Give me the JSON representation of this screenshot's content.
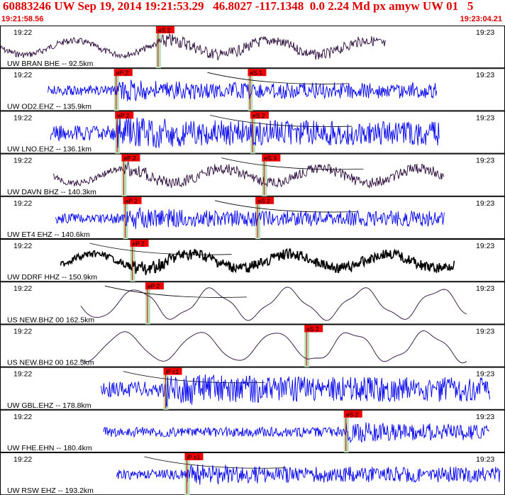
{
  "header": {
    "title": "60883246 UW Sep 19, 2014 19:21:53.29   46.8027 -117.1348  0.0 2.24 Md px amyw UW 01   5",
    "start_time": "19:21:58.56",
    "end_time": "19:23:04.21"
  },
  "colors": {
    "header_text": "#e00000",
    "trace_dark": "#2a0a3a",
    "trace_blue": "#0000ee",
    "trace_black": "#000000",
    "pick_box": "#ee0000",
    "pick_bar": "#b8e0b8",
    "border": "#000000"
  },
  "panels": [
    {
      "label": "UW BRAN BHE -- 92.5km",
      "left_time": "19:22",
      "right_time": "19:23",
      "color": "dark",
      "amp": "mid",
      "picks": [
        {
          "label": "eS 2",
          "t": 0.313
        }
      ],
      "travel": false,
      "data_start": 0.0,
      "data_end": 0.765
    },
    {
      "label": "UW OD2.EHZ -- 135.9km",
      "left_time": "19:22",
      "right_time": "19:23",
      "color": "blue",
      "amp": "mid",
      "picks": [
        {
          "label": "eP 2",
          "t": 0.23
        },
        {
          "label": "eS 1",
          "t": 0.495
        }
      ],
      "travel": true,
      "data_start": 0.095,
      "data_end": 0.865
    },
    {
      "label": "UW LNO.EHZ -- 136.1km",
      "left_time": "19:22",
      "right_time": "19:23",
      "color": "blue",
      "amp": "big",
      "picks": [
        {
          "label": "eP 2",
          "t": 0.232
        },
        {
          "label": "eS 2",
          "t": 0.5
        }
      ],
      "travel": true,
      "data_start": 0.1,
      "data_end": 0.87
    },
    {
      "label": "UW DAVN BHZ -- 140.3km",
      "left_time": "19:22",
      "right_time": "19:23",
      "color": "dark",
      "amp": "mid",
      "picks": [
        {
          "label": "eP 2",
          "t": 0.245
        },
        {
          "label": "eS 3",
          "t": 0.523
        }
      ],
      "travel": true,
      "data_start": 0.105,
      "data_end": 0.88
    },
    {
      "label": "UW ET4 EHZ -- 140.6km",
      "left_time": "19:22",
      "right_time": "19:23",
      "color": "blue",
      "amp": "mid",
      "picks": [
        {
          "label": "eP 2",
          "t": 0.248
        },
        {
          "label": "eS 2",
          "t": 0.51
        }
      ],
      "travel": true,
      "data_start": 0.11,
      "data_end": 0.88
    },
    {
      "label": "UW DDRF HHZ -- 150.9km",
      "left_time": "19:22",
      "right_time": "19:23",
      "color": "black",
      "amp": "mid",
      "picks": [
        {
          "label": "eP 2",
          "t": 0.262
        }
      ],
      "travel": true,
      "data_start": 0.12,
      "data_end": 0.9
    },
    {
      "label": "US NEW.BHZ 00 162.5km",
      "left_time": "19:22",
      "right_time": "19:23",
      "color": "dark",
      "amp": "low",
      "picks": [
        {
          "label": "eP 2",
          "t": 0.292
        }
      ],
      "travel": true,
      "data_start": 0.16,
      "data_end": 0.925
    },
    {
      "label": "US NEW.BH2 00 162.5km",
      "left_time": "19:22",
      "right_time": "19:23",
      "color": "dark",
      "amp": "low",
      "picks": [
        {
          "label": "eS 2",
          "t": 0.607
        }
      ],
      "travel": false,
      "data_start": 0.16,
      "data_end": 0.925
    },
    {
      "label": "UW GBL.EHZ -- 178.8km",
      "left_time": "19:22",
      "right_time": "19:23",
      "color": "blue",
      "amp": "big",
      "picks": [
        {
          "label": "iP c1",
          "t": 0.328
        }
      ],
      "travel": true,
      "data_start": 0.2,
      "data_end": 0.97
    },
    {
      "label": "UW FHE.EHN -- 180.4km",
      "left_time": "19:22",
      "right_time": "19:23",
      "color": "blue",
      "amp": "mid",
      "picks": [
        {
          "label": "eS 2",
          "t": 0.685
        }
      ],
      "travel": false,
      "data_start": 0.205,
      "data_end": 0.97
    },
    {
      "label": "UW RSW EHZ -- 193.2km",
      "left_time": "19:22",
      "right_time": "19:23",
      "color": "blue",
      "amp": "mid",
      "picks": [
        {
          "label": "iP c1",
          "t": 0.37
        }
      ],
      "travel": true,
      "data_start": 0.23,
      "data_end": 0.99
    }
  ]
}
